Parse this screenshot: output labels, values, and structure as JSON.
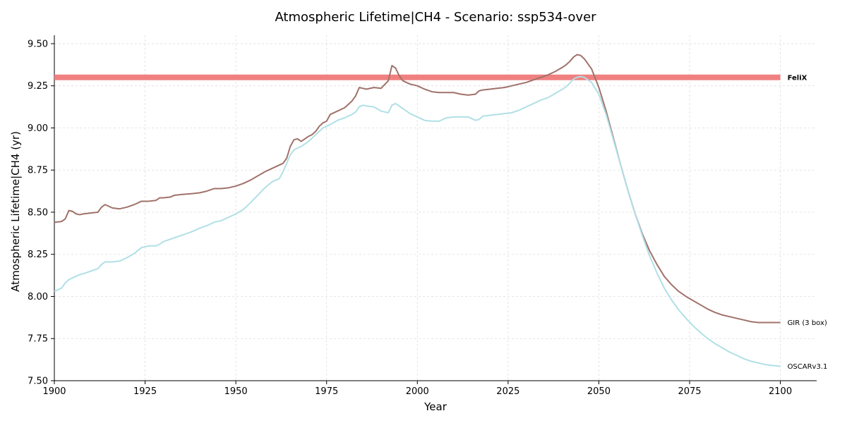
{
  "chart_data": {
    "type": "line",
    "title": "Atmospheric Lifetime|CH4 - Scenario: ssp534-over",
    "xlabel": "Year",
    "ylabel": "Atmospheric Lifetime|CH4 (yr)",
    "xlim": [
      1900,
      2110
    ],
    "ylim": [
      7.5,
      9.55
    ],
    "xticks": [
      1900,
      1925,
      1950,
      1975,
      2000,
      2025,
      2050,
      2075,
      2100
    ],
    "xtick_labels": [
      "1900",
      "1925",
      "1950",
      "1975",
      "2000",
      "2025",
      "2050",
      "2075",
      "2100"
    ],
    "yticks": [
      7.5,
      7.75,
      8.0,
      8.25,
      8.5,
      8.75,
      9.0,
      9.25,
      9.5
    ],
    "ytick_labels": [
      "7.50",
      "7.75",
      "8.00",
      "8.25",
      "8.50",
      "8.75",
      "9.00",
      "9.25",
      "9.50"
    ],
    "grid": true,
    "legend": "inline labels at right end of each line",
    "series": [
      {
        "name": "FeliX",
        "color": "#f08080",
        "label_bold": true,
        "x": [
          1900,
          2100
        ],
        "y": [
          9.3,
          9.3
        ]
      },
      {
        "name": "GIR (3 box)",
        "color": "#a0726a",
        "label_bold": false,
        "x": [
          1900,
          1902,
          1903,
          1904,
          1905,
          1906,
          1907,
          1908,
          1910,
          1912,
          1913,
          1914,
          1916,
          1918,
          1920,
          1922,
          1924,
          1926,
          1928,
          1929,
          1930,
          1932,
          1933,
          1935,
          1938,
          1940,
          1942,
          1944,
          1946,
          1948,
          1950,
          1952,
          1954,
          1956,
          1958,
          1960,
          1962,
          1963,
          1964,
          1965,
          1966,
          1967,
          1968,
          1970,
          1971,
          1972,
          1973,
          1974,
          1975,
          1976,
          1978,
          1980,
          1982,
          1983,
          1984,
          1985,
          1986,
          1988,
          1990,
          1992,
          1993,
          1994,
          1995,
          1996,
          1998,
          2000,
          2002,
          2004,
          2006,
          2008,
          2010,
          2012,
          2014,
          2016,
          2017,
          2018,
          2020,
          2022,
          2024,
          2026,
          2028,
          2030,
          2032,
          2034,
          2036,
          2038,
          2040,
          2041,
          2042,
          2043,
          2044,
          2045,
          2046,
          2048,
          2050,
          2052,
          2054,
          2056,
          2058,
          2060,
          2062,
          2064,
          2066,
          2068,
          2070,
          2072,
          2074,
          2076,
          2078,
          2080,
          2082,
          2084,
          2086,
          2088,
          2090,
          2092,
          2094,
          2096,
          2098,
          2100
        ],
        "y": [
          8.44,
          8.445,
          8.46,
          8.51,
          8.505,
          8.49,
          8.485,
          8.49,
          8.495,
          8.5,
          8.53,
          8.545,
          8.525,
          8.52,
          8.53,
          8.545,
          8.565,
          8.565,
          8.57,
          8.585,
          8.585,
          8.59,
          8.6,
          8.605,
          8.61,
          8.615,
          8.625,
          8.64,
          8.64,
          8.645,
          8.655,
          8.67,
          8.69,
          8.715,
          8.74,
          8.76,
          8.78,
          8.79,
          8.82,
          8.89,
          8.93,
          8.935,
          8.92,
          8.95,
          8.96,
          8.98,
          9.01,
          9.03,
          9.04,
          9.08,
          9.1,
          9.12,
          9.16,
          9.19,
          9.24,
          9.235,
          9.23,
          9.24,
          9.235,
          9.28,
          9.37,
          9.355,
          9.31,
          9.28,
          9.26,
          9.25,
          9.23,
          9.215,
          9.21,
          9.21,
          9.21,
          9.2,
          9.195,
          9.2,
          9.22,
          9.225,
          9.23,
          9.235,
          9.24,
          9.25,
          9.26,
          9.27,
          9.285,
          9.3,
          9.315,
          9.335,
          9.36,
          9.375,
          9.395,
          9.42,
          9.435,
          9.43,
          9.41,
          9.35,
          9.24,
          9.1,
          8.94,
          8.78,
          8.63,
          8.49,
          8.37,
          8.27,
          8.19,
          8.12,
          8.07,
          8.03,
          8.0,
          7.975,
          7.95,
          7.925,
          7.905,
          7.89,
          7.88,
          7.87,
          7.86,
          7.85,
          7.845,
          7.845,
          7.845,
          7.845
        ]
      },
      {
        "name": "OSCARv3.1",
        "color": "#b0e0e6",
        "label_bold": false,
        "x": [
          1900,
          1902,
          1903,
          1904,
          1905,
          1906,
          1907,
          1908,
          1910,
          1912,
          1913,
          1914,
          1916,
          1918,
          1920,
          1922,
          1924,
          1926,
          1928,
          1929,
          1930,
          1932,
          1934,
          1936,
          1938,
          1940,
          1942,
          1944,
          1946,
          1948,
          1950,
          1952,
          1954,
          1956,
          1958,
          1960,
          1962,
          1963,
          1964,
          1965,
          1966,
          1967,
          1968,
          1970,
          1972,
          1974,
          1976,
          1978,
          1980,
          1982,
          1983,
          1984,
          1985,
          1986,
          1988,
          1990,
          1992,
          1993,
          1994,
          1995,
          1996,
          1998,
          2000,
          2002,
          2004,
          2006,
          2008,
          2010,
          2012,
          2014,
          2015,
          2016,
          2017,
          2018,
          2020,
          2022,
          2024,
          2026,
          2028,
          2030,
          2032,
          2034,
          2036,
          2038,
          2040,
          2041,
          2042,
          2043,
          2044,
          2045,
          2046,
          2048,
          2050,
          2052,
          2054,
          2056,
          2058,
          2060,
          2062,
          2064,
          2066,
          2068,
          2070,
          2072,
          2074,
          2076,
          2078,
          2080,
          2082,
          2084,
          2086,
          2088,
          2090,
          2092,
          2094,
          2096,
          2098,
          2100
        ],
        "y": [
          8.03,
          8.05,
          8.08,
          8.1,
          8.11,
          8.12,
          8.13,
          8.135,
          8.15,
          8.165,
          8.19,
          8.205,
          8.205,
          8.21,
          8.23,
          8.255,
          8.29,
          8.3,
          8.3,
          8.31,
          8.325,
          8.34,
          8.355,
          8.37,
          8.385,
          8.405,
          8.42,
          8.44,
          8.45,
          8.47,
          8.49,
          8.515,
          8.555,
          8.6,
          8.645,
          8.68,
          8.7,
          8.74,
          8.79,
          8.84,
          8.87,
          8.88,
          8.89,
          8.92,
          8.96,
          9.0,
          9.02,
          9.045,
          9.06,
          9.08,
          9.095,
          9.125,
          9.135,
          9.13,
          9.125,
          9.1,
          9.09,
          9.135,
          9.145,
          9.13,
          9.115,
          9.085,
          9.065,
          9.045,
          9.04,
          9.04,
          9.06,
          9.065,
          9.065,
          9.065,
          9.055,
          9.045,
          9.05,
          9.07,
          9.075,
          9.08,
          9.085,
          9.09,
          9.105,
          9.125,
          9.145,
          9.165,
          9.18,
          9.205,
          9.23,
          9.245,
          9.265,
          9.29,
          9.3,
          9.305,
          9.3,
          9.27,
          9.2,
          9.08,
          8.93,
          8.78,
          8.63,
          8.49,
          8.36,
          8.24,
          8.14,
          8.05,
          7.98,
          7.92,
          7.87,
          7.825,
          7.785,
          7.75,
          7.72,
          7.695,
          7.67,
          7.65,
          7.63,
          7.615,
          7.605,
          7.595,
          7.59,
          7.585
        ]
      }
    ]
  }
}
